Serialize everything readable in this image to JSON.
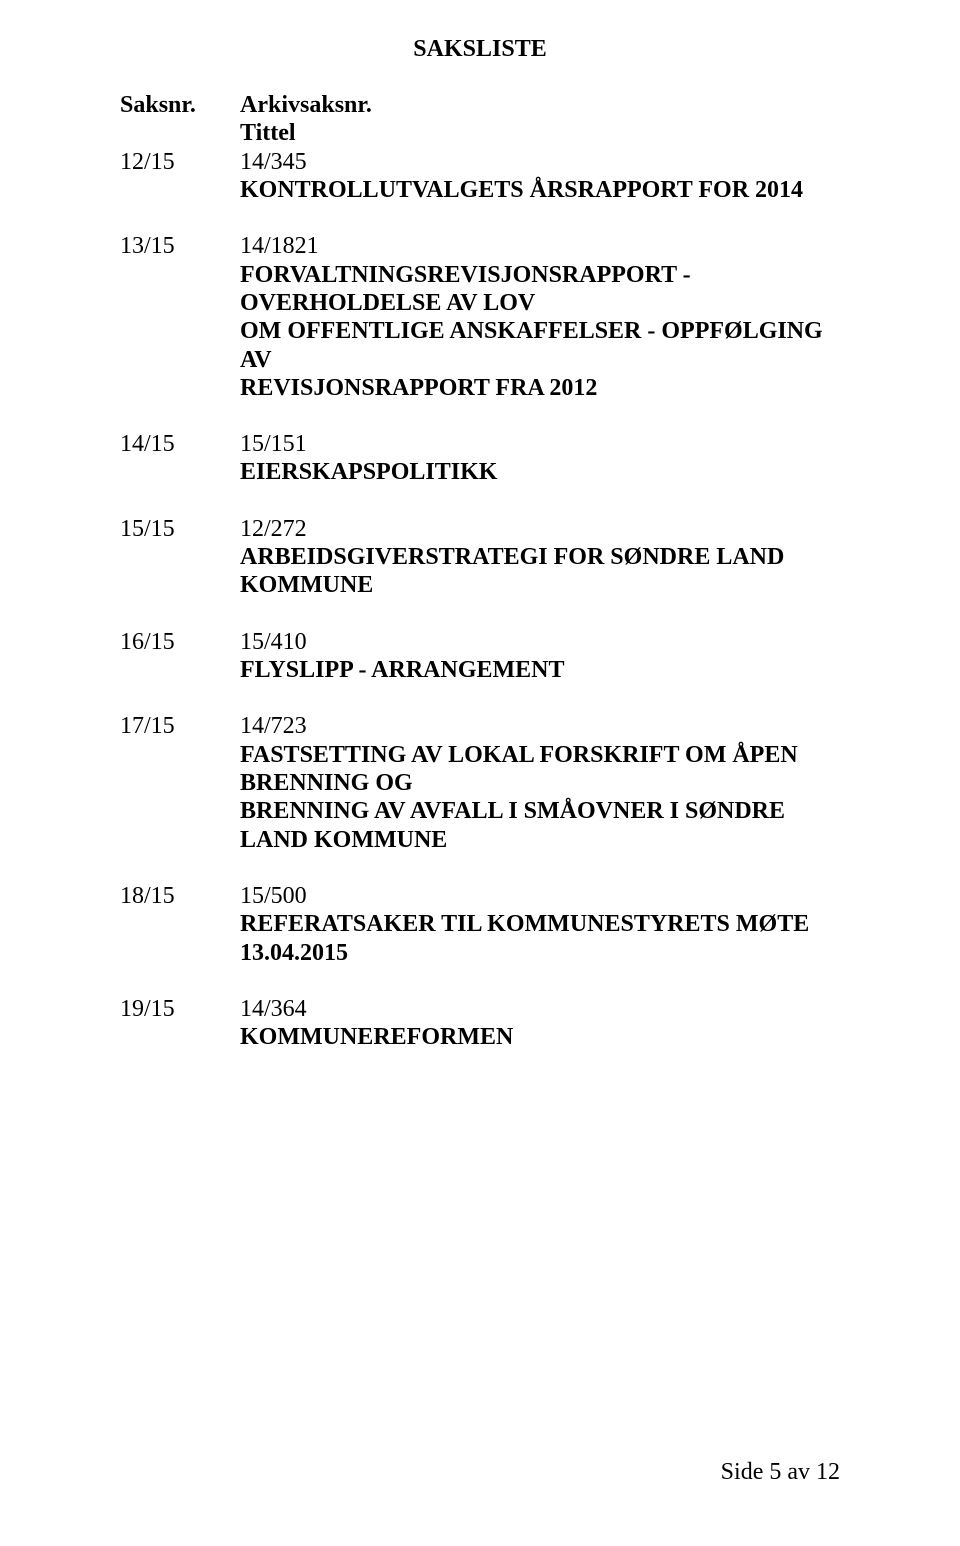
{
  "title": "SAKSLISTE",
  "header": {
    "left": "Saksnr.",
    "right": "Arkivsaksnr.",
    "subright": "Tittel"
  },
  "items": [
    {
      "saksnr": "12/15",
      "arkiv": "14/345",
      "lines": [
        "KONTROLLUTVALGETS ÅRSRAPPORT FOR 2014"
      ]
    },
    {
      "saksnr": "13/15",
      "arkiv": "14/1821",
      "lines": [
        "FORVALTNINGSREVISJONSRAPPORT - OVERHOLDELSE AV LOV",
        "OM OFFENTLIGE ANSKAFFELSER - OPPFØLGING AV",
        "REVISJONSRAPPORT FRA 2012"
      ]
    },
    {
      "saksnr": "14/15",
      "arkiv": "15/151",
      "lines": [
        "EIERSKAPSPOLITIKK"
      ]
    },
    {
      "saksnr": "15/15",
      "arkiv": "12/272",
      "lines": [
        "ARBEIDSGIVERSTRATEGI FOR SØNDRE LAND KOMMUNE"
      ]
    },
    {
      "saksnr": "16/15",
      "arkiv": "15/410",
      "lines": [
        "FLYSLIPP - ARRANGEMENT"
      ]
    },
    {
      "saksnr": "17/15",
      "arkiv": "14/723",
      "lines": [
        "FASTSETTING AV LOKAL FORSKRIFT OM ÅPEN BRENNING OG",
        "BRENNING AV AVFALL I SMÅOVNER I SØNDRE LAND KOMMUNE"
      ]
    },
    {
      "saksnr": "18/15",
      "arkiv": "15/500",
      "lines": [
        "REFERATSAKER TIL KOMMUNESTYRETS MØTE 13.04.2015"
      ]
    },
    {
      "saksnr": "19/15",
      "arkiv": "14/364",
      "lines": [
        "KOMMUNEREFORMEN"
      ]
    }
  ],
  "footer": "Side 5 av 12"
}
